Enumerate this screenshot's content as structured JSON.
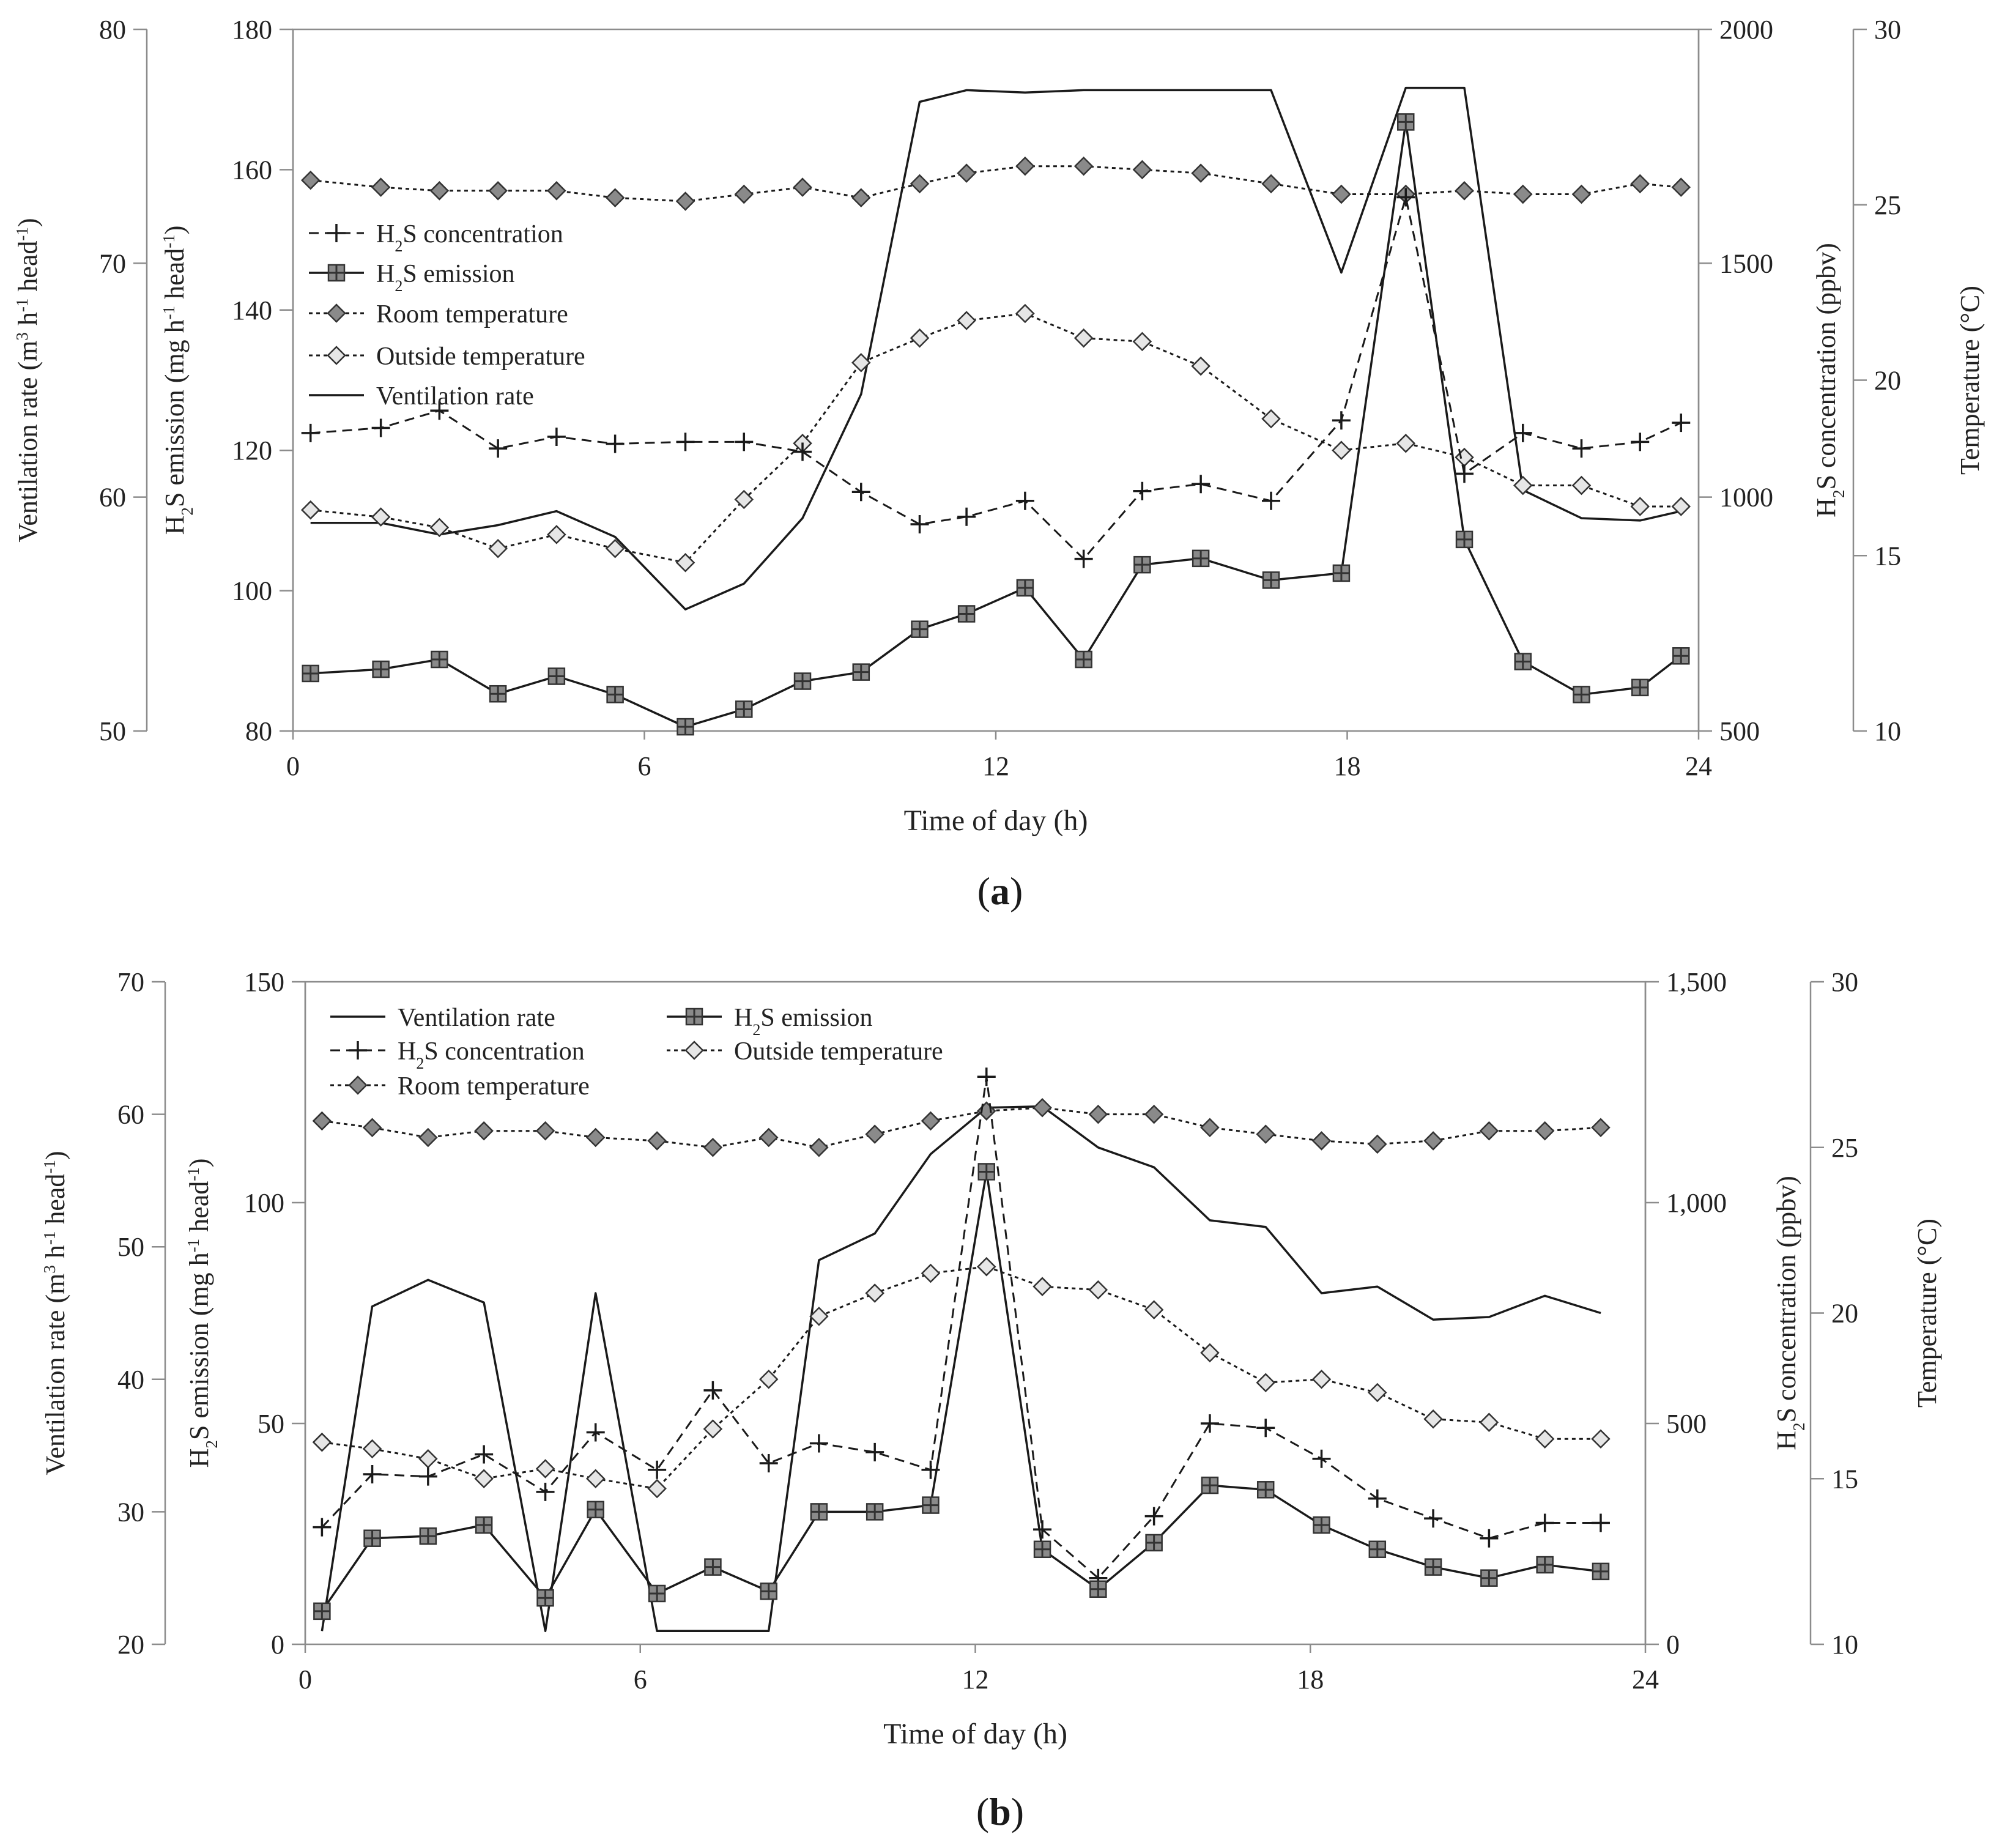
{
  "captions": [
    {
      "open": "(",
      "letter": "a",
      "close": ")"
    },
    {
      "open": "(",
      "letter": "b",
      "close": ")"
    }
  ],
  "colors": {
    "line": "#1a1a1a",
    "axis": "#8c8c8c",
    "marker_fill_dark": "#8a8a8a",
    "marker_fill_light": "#e6e6e6",
    "marker_outline": "#333333"
  },
  "chart_data": [
    {
      "type": "line",
      "xlabel": "Time of day (h)",
      "xlim": [
        0,
        24
      ],
      "xticks": [
        "0",
        "6",
        "12",
        "18",
        "24"
      ],
      "axes": {
        "ventilation": {
          "label_parts": [
            "Ventilation rate (m",
            "3",
            " h",
            "-1",
            " head",
            "-1",
            ")"
          ],
          "lim": [
            50,
            80
          ],
          "ticks": [
            "50",
            "60",
            "70",
            "80"
          ]
        },
        "emission": {
          "label_parts": [
            "H",
            "2",
            "S emission (mg h",
            "-1",
            " head",
            "-1",
            ")"
          ],
          "lim": [
            80,
            180
          ],
          "ticks": [
            "80",
            "100",
            "120",
            "140",
            "160",
            "180"
          ]
        },
        "concentration": {
          "label_parts": [
            "H",
            "2",
            "S concentration (ppbv)"
          ],
          "lim": [
            500,
            2000
          ],
          "ticks": [
            "500",
            "1000",
            "1500",
            "2000"
          ]
        },
        "temperature": {
          "label": "Temperature (°C)",
          "lim": [
            10,
            30
          ],
          "ticks": [
            "10",
            "15",
            "20",
            "25",
            "30"
          ]
        }
      },
      "legend_position": "upper-left",
      "legend": [
        {
          "series": "concentration",
          "parts": [
            "H",
            "2",
            "S concentration"
          ]
        },
        {
          "series": "emission",
          "parts": [
            "H",
            "2",
            "S emission"
          ]
        },
        {
          "series": "room",
          "parts": [
            "Room temperature"
          ]
        },
        {
          "series": "outside",
          "parts": [
            "Outside temperature"
          ]
        },
        {
          "series": "ventilation",
          "parts": [
            "Ventilation rate"
          ]
        }
      ],
      "series": {
        "ventilation": {
          "x": [
            0.3,
            1.5,
            2.5,
            3.5,
            4.5,
            5.5,
            6.7,
            7.7,
            8.7,
            9.7,
            10.7,
            11.5,
            12.5,
            13.5,
            14.5,
            15.5,
            16.7,
            17.9,
            19,
            20,
            21,
            22,
            23,
            23.7
          ],
          "values": [
            58.9,
            58.9,
            58.4,
            58.8,
            59.4,
            58.3,
            55.2,
            56.3,
            59.1,
            64.4,
            76.9,
            77.4,
            77.3,
            77.4,
            77.4,
            77.4,
            77.4,
            69.6,
            77.5,
            77.5,
            60.3,
            59.1,
            59.0,
            59.4
          ]
        },
        "emission": {
          "x": [
            0.3,
            1.5,
            2.5,
            3.5,
            4.5,
            5.5,
            6.7,
            7.7,
            8.7,
            9.7,
            10.7,
            11.5,
            12.5,
            13.5,
            14.5,
            15.5,
            16.7,
            17.9,
            19,
            20,
            21,
            22,
            23,
            23.7
          ],
          "values": [
            88.2,
            88.8,
            90.2,
            85.3,
            87.8,
            85.2,
            80.6,
            83.1,
            87.1,
            88.4,
            94.5,
            96.7,
            100.4,
            90.2,
            103.7,
            104.6,
            101.5,
            102.5,
            166.8,
            107.3,
            89.9,
            85.2,
            86.2,
            90.7
          ]
        },
        "concentration": {
          "x": [
            0.3,
            1.5,
            2.5,
            3.5,
            4.5,
            5.5,
            6.7,
            7.7,
            8.7,
            9.7,
            10.7,
            11.5,
            12.5,
            13.5,
            14.5,
            15.5,
            16.7,
            17.9,
            19,
            20,
            21,
            22,
            23,
            23.7
          ],
          "values": [
            1137,
            1148,
            1185,
            1104,
            1129,
            1114,
            1118,
            1118,
            1097,
            1011,
            942,
            958,
            992,
            868,
            1013,
            1028,
            992,
            1164,
            1641,
            1050,
            1137,
            1104,
            1118,
            1159
          ]
        },
        "room": {
          "x": [
            0.3,
            1.5,
            2.5,
            3.5,
            4.5,
            5.5,
            6.7,
            7.7,
            8.7,
            9.7,
            10.7,
            11.5,
            12.5,
            13.5,
            14.5,
            15.5,
            16.7,
            17.9,
            19,
            20,
            21,
            22,
            23,
            23.7
          ],
          "values": [
            25.7,
            25.5,
            25.4,
            25.4,
            25.4,
            25.2,
            25.1,
            25.3,
            25.5,
            25.2,
            25.6,
            25.9,
            26.1,
            26.1,
            26.0,
            25.9,
            25.6,
            25.3,
            25.3,
            25.4,
            25.3,
            25.3,
            25.6,
            25.5
          ]
        },
        "outside": {
          "x": [
            0.3,
            1.5,
            2.5,
            3.5,
            4.5,
            5.5,
            6.7,
            7.7,
            8.7,
            9.7,
            10.7,
            11.5,
            12.5,
            13.5,
            14.5,
            15.5,
            16.7,
            17.9,
            19,
            20,
            21,
            22,
            23,
            23.7
          ],
          "values": [
            16.3,
            16.1,
            15.8,
            15.2,
            15.6,
            15.2,
            14.8,
            16.6,
            18.2,
            20.5,
            21.2,
            21.7,
            21.9,
            21.2,
            21.1,
            20.4,
            18.9,
            18.0,
            18.2,
            17.8,
            17.0,
            17.0,
            16.4,
            16.4
          ]
        }
      }
    },
    {
      "type": "line",
      "xlabel": "Time of day (h)",
      "xlim": [
        0,
        24
      ],
      "xticks": [
        "0",
        "6",
        "12",
        "18",
        "24"
      ],
      "axes": {
        "ventilation": {
          "label_parts": [
            "Ventilation rate (m",
            "3",
            " h",
            "-1",
            " head",
            "-1",
            ")"
          ],
          "lim": [
            20,
            70
          ],
          "ticks": [
            "20",
            "30",
            "40",
            "50",
            "60",
            "70"
          ]
        },
        "emission": {
          "label_parts": [
            "H",
            "2",
            "S emission (mg h",
            "-1",
            " head",
            "-1",
            ")"
          ],
          "lim": [
            0,
            150
          ],
          "ticks": [
            "0",
            "50",
            "100",
            "150"
          ]
        },
        "concentration": {
          "label_parts": [
            "H",
            "2",
            "S concentration (ppbv)"
          ],
          "lim": [
            0,
            1500
          ],
          "ticks": [
            "0",
            "500",
            "1,000",
            "1,500"
          ]
        },
        "temperature": {
          "label": "Temperature (°C)",
          "lim": [
            10,
            30
          ],
          "ticks": [
            "10",
            "15",
            "20",
            "25",
            "30"
          ]
        }
      },
      "legend_position": "upper-left",
      "legend": [
        {
          "series": "ventilation",
          "parts": [
            "Ventilation rate"
          ]
        },
        {
          "series": "emission",
          "parts": [
            "H",
            "2",
            "S emission"
          ]
        },
        {
          "series": "concentration",
          "parts": [
            "H",
            "2",
            "S concentration"
          ]
        },
        {
          "series": "outside",
          "parts": [
            "Outside temperature"
          ]
        },
        {
          "series": "room",
          "parts": [
            "Room temperature"
          ]
        }
      ],
      "series": {
        "ventilation": {
          "x": [
            0.3,
            1.2,
            2.2,
            3.2,
            4.3,
            5.2,
            6.3,
            7.3,
            8.3,
            9.2,
            10.2,
            11.2,
            12.2,
            13.2,
            14.2,
            15.2,
            16.2,
            17.2,
            18.2,
            19.2,
            20.2,
            21.2,
            22.2,
            23.2
          ],
          "values": [
            21.0,
            45.5,
            47.5,
            45.8,
            21.0,
            46.5,
            21.0,
            21.0,
            21.0,
            49.0,
            51.0,
            57.0,
            60.5,
            60.6,
            57.5,
            56.0,
            52.0,
            51.5,
            46.5,
            47.0,
            44.5,
            44.7,
            46.3,
            45.0
          ]
        },
        "emission": {
          "x": [
            0.3,
            1.2,
            2.2,
            3.2,
            4.3,
            5.2,
            6.3,
            7.3,
            8.3,
            9.2,
            10.2,
            11.2,
            12.2,
            13.2,
            14.2,
            15.2,
            16.2,
            17.2,
            18.2,
            19.2,
            20.2,
            21.2,
            22.2,
            23.2
          ],
          "values": [
            7.5,
            24.0,
            24.5,
            27.0,
            10.5,
            30.5,
            11.5,
            17.5,
            12.0,
            30.0,
            30.0,
            31.5,
            107.0,
            21.5,
            12.5,
            23.0,
            36.0,
            35.0,
            27.0,
            21.5,
            17.5,
            15.0,
            18.0,
            16.5
          ]
        },
        "concentration": {
          "x": [
            0.3,
            1.2,
            2.2,
            3.2,
            4.3,
            5.2,
            6.3,
            7.3,
            8.3,
            9.2,
            10.2,
            11.2,
            12.2,
            13.2,
            14.2,
            15.2,
            16.2,
            17.2,
            18.2,
            19.2,
            20.2,
            21.2,
            22.2,
            23.2
          ],
          "values": [
            265,
            385,
            380,
            430,
            345,
            480,
            395,
            575,
            410,
            455,
            435,
            395,
            1285,
            260,
            150,
            290,
            500,
            490,
            420,
            330,
            285,
            240,
            275,
            275
          ]
        },
        "room": {
          "x": [
            0.3,
            1.2,
            2.2,
            3.2,
            4.3,
            5.2,
            6.3,
            7.3,
            8.3,
            9.2,
            10.2,
            11.2,
            12.2,
            13.2,
            14.2,
            15.2,
            16.2,
            17.2,
            18.2,
            19.2,
            20.2,
            21.2,
            22.2,
            23.2
          ],
          "values": [
            25.8,
            25.6,
            25.3,
            25.5,
            25.5,
            25.3,
            25.2,
            25.0,
            25.3,
            25.0,
            25.4,
            25.8,
            26.1,
            26.2,
            26.0,
            26.0,
            25.6,
            25.4,
            25.2,
            25.1,
            25.2,
            25.5,
            25.5,
            25.6
          ]
        },
        "outside": {
          "x": [
            0.3,
            1.2,
            2.2,
            3.2,
            4.3,
            5.2,
            6.3,
            7.3,
            8.3,
            9.2,
            10.2,
            11.2,
            12.2,
            13.2,
            14.2,
            15.2,
            16.2,
            17.2,
            18.2,
            19.2,
            20.2,
            21.2,
            22.2,
            23.2
          ],
          "values": [
            16.1,
            15.9,
            15.6,
            15.0,
            15.3,
            15.0,
            14.7,
            16.5,
            18.0,
            19.9,
            20.6,
            21.2,
            21.4,
            20.8,
            20.7,
            20.1,
            18.8,
            17.9,
            18.0,
            17.6,
            16.8,
            16.7,
            16.2,
            16.2
          ]
        }
      }
    }
  ]
}
